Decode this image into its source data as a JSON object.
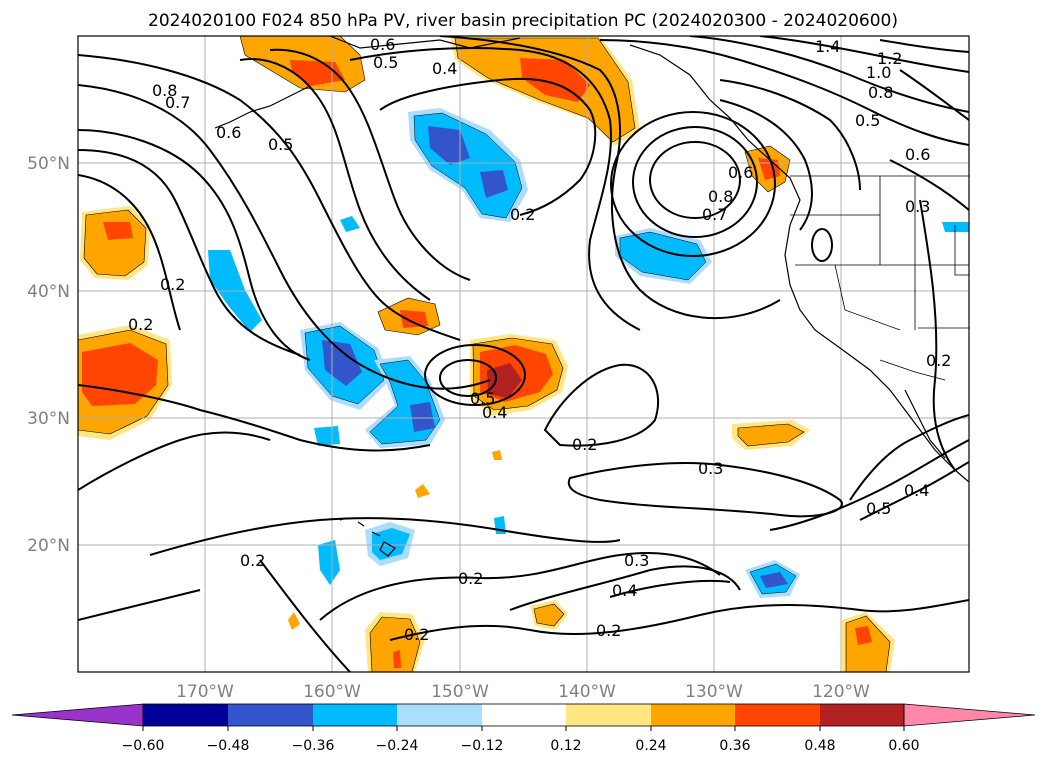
{
  "title": "2024020100 F024 850 hPa PV, river basin precipitation PC (2024020300 - 2024020600)",
  "map": {
    "lat_labels": [
      "50°N",
      "40°N",
      "30°N",
      "20°N"
    ],
    "lon_labels": [
      "170°W",
      "160°W",
      "150°W",
      "140°W",
      "130°W",
      "120°W"
    ],
    "contour_labels": [
      "0.6",
      "0.5",
      "0.4",
      "0.8",
      "0.7",
      "0.6",
      "0.5",
      "1.4",
      "1.2",
      "1.0",
      "0.8",
      "0.5",
      "0.6",
      "0.6",
      "0.8",
      "0.7",
      "0.3",
      "0.2",
      "0.2",
      "0.2",
      "0.5",
      "0.4",
      "0.2",
      "0.3",
      "0.2",
      "0.5",
      "0.4",
      "0.2",
      "0.3",
      "0.4",
      "0.2",
      "0.2",
      "0.2"
    ]
  },
  "colorbar": {
    "ticks": [
      "−0.60",
      "−0.48",
      "−0.36",
      "−0.24",
      "−0.12",
      "0.12",
      "0.24",
      "0.36",
      "0.48",
      "0.60"
    ],
    "colors": [
      "#9933cc",
      "#000099",
      "#3355cc",
      "#00bbff",
      "#aaddff",
      "#ffffff",
      "#ffe680",
      "#ffa500",
      "#ff4500",
      "#b22222",
      "#ff88aa"
    ]
  }
}
